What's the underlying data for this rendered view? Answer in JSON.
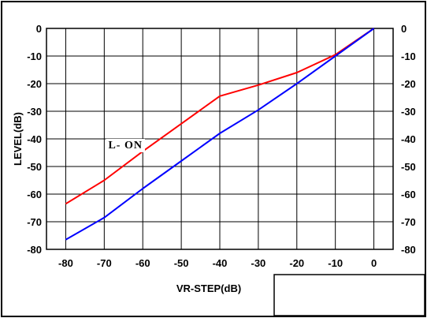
{
  "chart_data": {
    "type": "line",
    "title": "",
    "xlabel": "VR-STEP(dB)",
    "ylabel": "LEVEL(dB)",
    "x_ticks": [
      -80,
      -70,
      -60,
      -50,
      -40,
      -30,
      -20,
      -10,
      0
    ],
    "y_ticks": [
      0,
      -10,
      -20,
      -30,
      -40,
      -50,
      -60,
      -70,
      -80
    ],
    "y_tick_labels": [
      "0",
      "-10",
      "-20",
      "-30",
      "-40",
      "-50",
      "-60",
      "-70",
      "-80"
    ],
    "x_tick_labels": [
      "-80",
      "-70",
      "-60",
      "-50",
      "-40",
      "-30",
      "-20",
      "-10",
      "0"
    ],
    "xlim": [
      -85,
      5
    ],
    "ylim": [
      -80,
      0
    ],
    "grid": true,
    "right_axis": true,
    "series": [
      {
        "color": "#ff0000",
        "x": [
          -80,
          -70,
          -60,
          -50,
          -40,
          -30,
          -20,
          -10,
          0
        ],
        "y": [
          -63.5,
          -55,
          -44.5,
          -34.5,
          -24.5,
          -20.5,
          -16,
          -9.5,
          0
        ]
      },
      {
        "color": "#0000ff",
        "x": [
          -80,
          -70,
          -60,
          -50,
          -40,
          -30,
          -20,
          -10,
          0
        ],
        "y": [
          -76.5,
          -68.5,
          -58,
          -48,
          -38,
          -29.5,
          -20,
          -10,
          0
        ]
      }
    ],
    "annotations": [
      {
        "text": "L- ON",
        "x": -64.5,
        "y": -42
      }
    ]
  }
}
